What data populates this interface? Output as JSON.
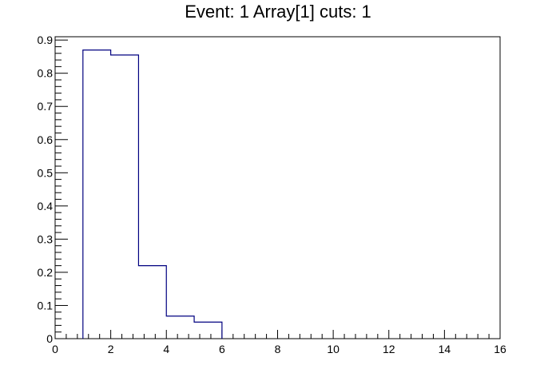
{
  "chart_data": {
    "type": "histogram",
    "title": "Event: 1 Array[1] cuts: 1",
    "xlabel": "",
    "ylabel": "",
    "xlim": [
      0,
      16
    ],
    "ylim": [
      0,
      0.91
    ],
    "bin_edges": [
      1,
      2,
      3,
      4,
      5,
      6
    ],
    "values": [
      0.87,
      0.855,
      0.22,
      0.068,
      0.05
    ],
    "x_ticks": [
      "0",
      "2",
      "4",
      "6",
      "8",
      "10",
      "12",
      "14",
      "16"
    ],
    "y_ticks": [
      "0",
      "0.1",
      "0.2",
      "0.3",
      "0.4",
      "0.5",
      "0.6",
      "0.7",
      "0.8",
      "0.9"
    ],
    "line_color": "#000080",
    "grid": false
  }
}
